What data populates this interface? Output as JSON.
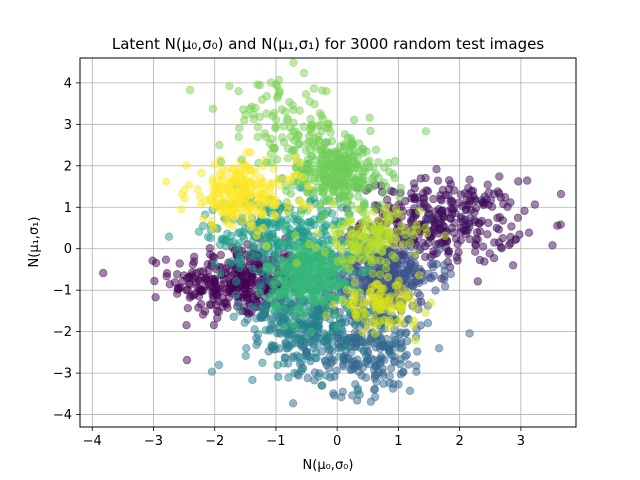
{
  "chart_data": {
    "type": "scatter",
    "title": "Latent N(μ₀,σ₀) and N(μ₁,σ₁) for 3000 random test images",
    "xlabel": "N(μ₀,σ₀)",
    "ylabel": "N(μ₁,σ₁)",
    "xlim": [
      -4.2,
      3.9
    ],
    "ylim": [
      -4.3,
      4.6
    ],
    "xticks": [
      -4,
      -3,
      -2,
      -1,
      0,
      1,
      2,
      3
    ],
    "yticks": [
      -4,
      -3,
      -2,
      -1,
      0,
      1,
      2,
      3,
      4
    ],
    "grid": true,
    "point_alpha": 0.5,
    "total_points": 3000,
    "clusters": [
      {
        "color": "#440154",
        "cx": -1.6,
        "cy": -0.8,
        "sx": 0.55,
        "sy": 0.45,
        "n": 330
      },
      {
        "color": "#3e0b5a",
        "cx": 1.7,
        "cy": 0.65,
        "sx": 0.65,
        "sy": 0.5,
        "n": 330
      },
      {
        "color": "#3b528b",
        "cx": 0.75,
        "cy": -0.65,
        "sx": 0.45,
        "sy": 0.4,
        "n": 300
      },
      {
        "color": "#31688e",
        "cx": 0.4,
        "cy": -2.3,
        "sx": 0.55,
        "sy": 0.6,
        "n": 300
      },
      {
        "color": "#26828e",
        "cx": -0.6,
        "cy": -1.7,
        "sx": 0.45,
        "sy": 0.6,
        "n": 280
      },
      {
        "color": "#1f9e89",
        "cx": -0.95,
        "cy": 0.4,
        "sx": 0.6,
        "sy": 0.45,
        "n": 280
      },
      {
        "color": "#35b779",
        "cx": -0.45,
        "cy": -0.7,
        "sx": 0.35,
        "sy": 0.45,
        "n": 290
      },
      {
        "color": "#6ece58",
        "cx": 0.0,
        "cy": 1.85,
        "sx": 0.4,
        "sy": 0.45,
        "n": 320
      },
      {
        "color": "#b5de2b",
        "cx": 0.55,
        "cy": 0.25,
        "sx": 0.4,
        "sy": 0.35,
        "n": 150
      },
      {
        "color": "#fde725",
        "cx": -1.55,
        "cy": 1.3,
        "sx": 0.45,
        "sy": 0.4,
        "n": 220
      },
      {
        "color": "#d8e219",
        "cx": 0.7,
        "cy": -1.35,
        "sx": 0.35,
        "sy": 0.25,
        "n": 100
      },
      {
        "color": "#7ad151",
        "cx": -0.9,
        "cy": 3.0,
        "sx": 0.5,
        "sy": 0.5,
        "n": 100
      }
    ]
  }
}
